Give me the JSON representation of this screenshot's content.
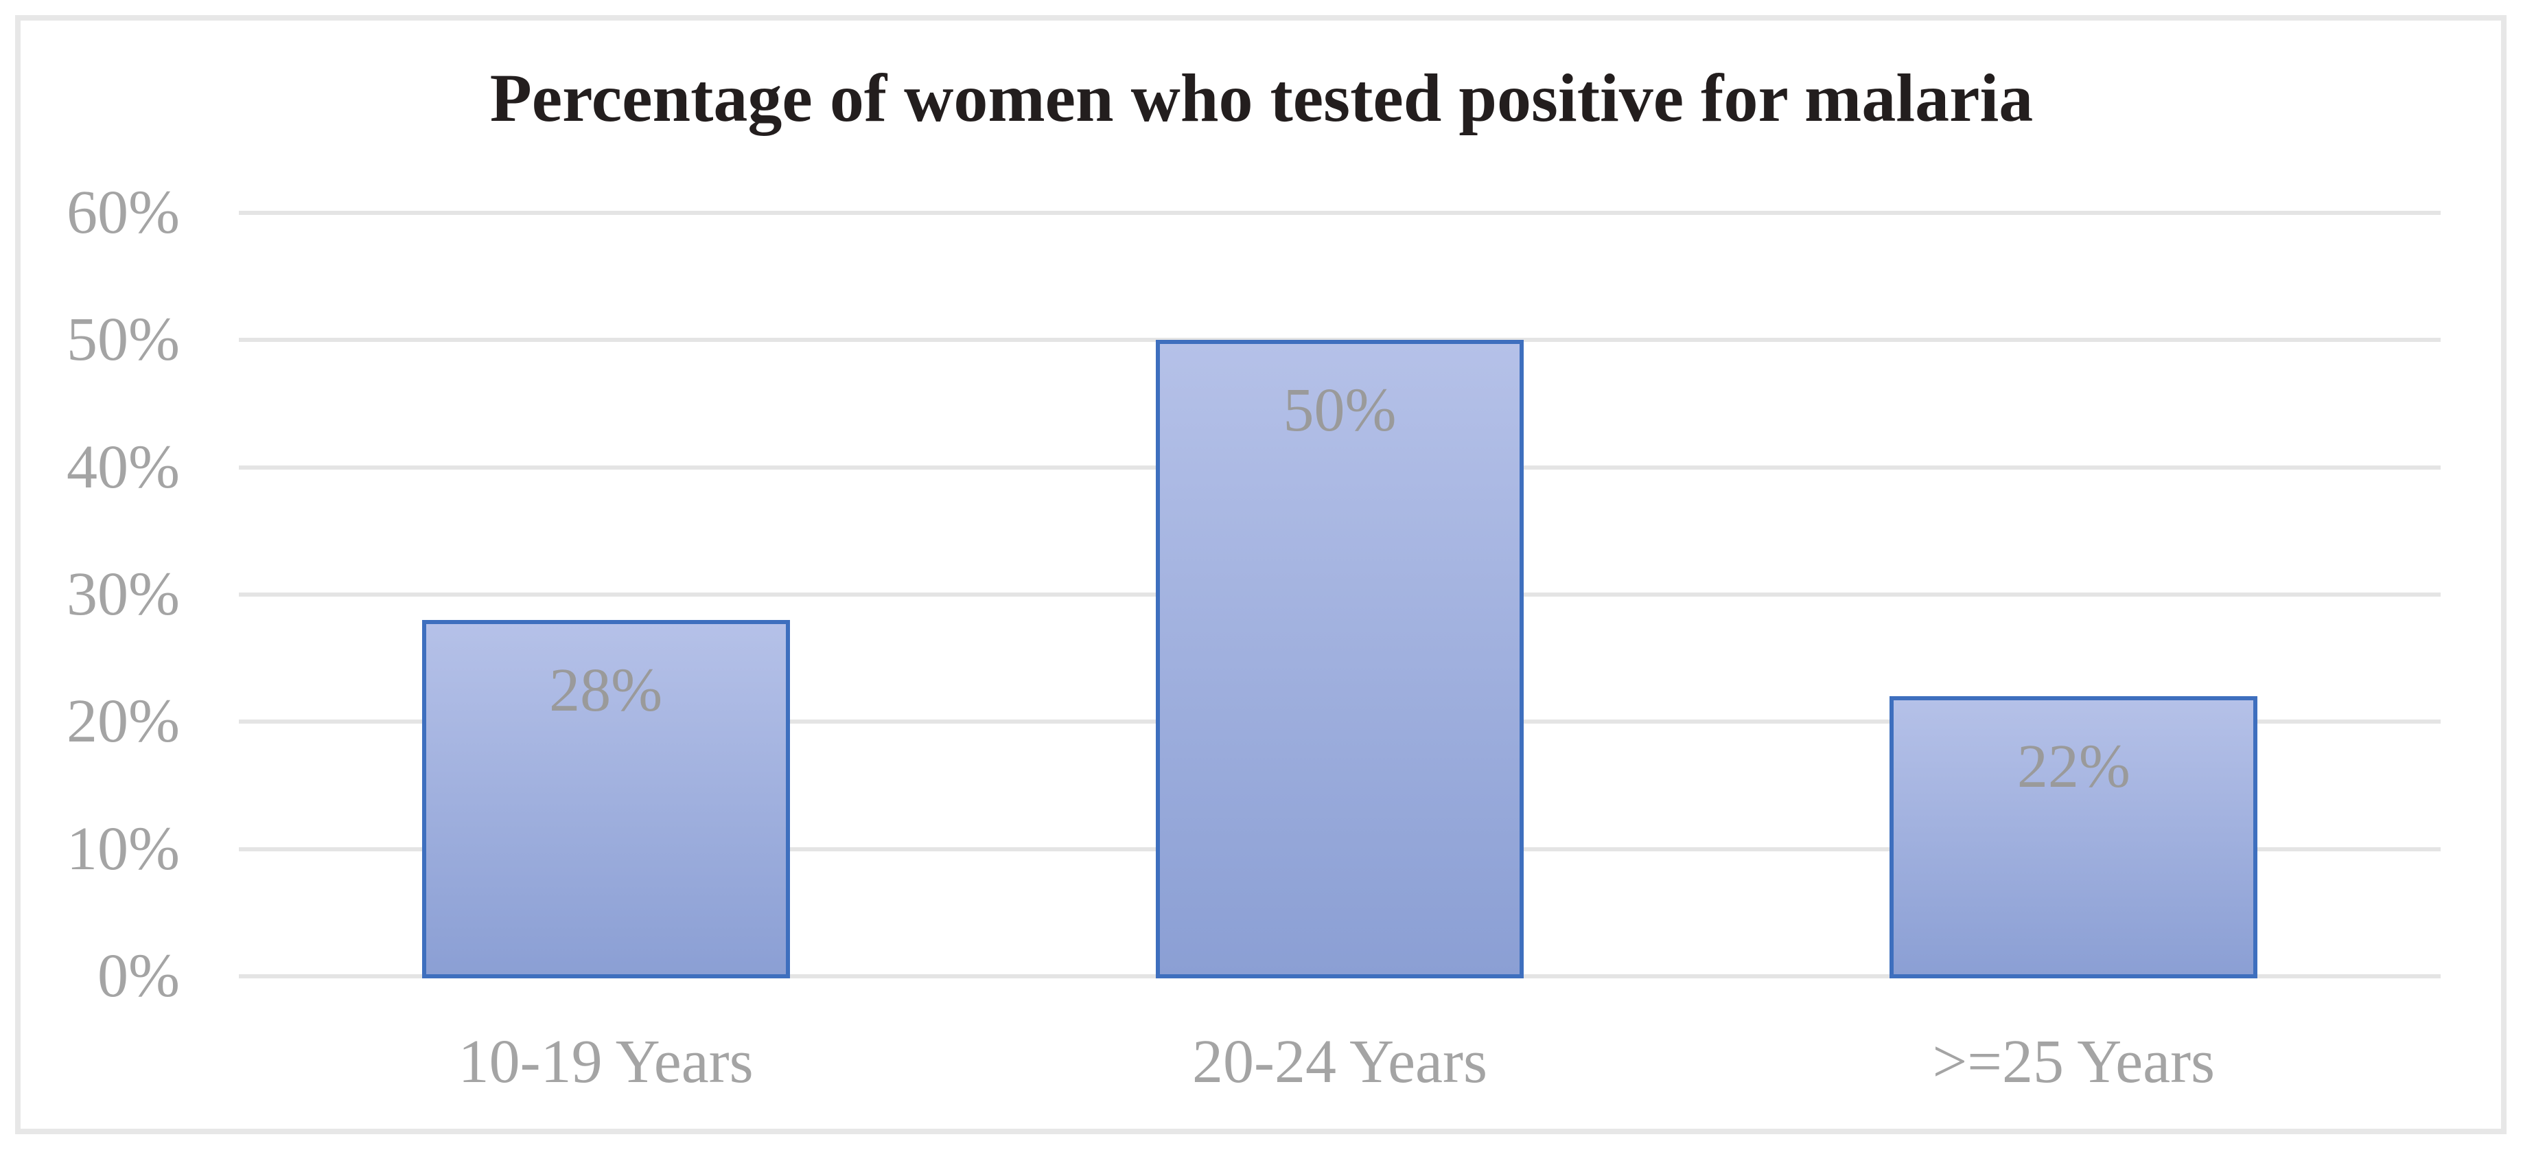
{
  "chart": {
    "title": "Percentage of women who tested positive for malaria"
  },
  "chart_data": {
    "type": "bar",
    "title": "Percentage of women who tested positive for malaria",
    "categories": [
      "10-19 Years",
      "20-24 Years",
      ">=25 Years"
    ],
    "values": [
      28,
      50,
      22
    ],
    "data_labels": [
      "28%",
      "50%",
      "22%"
    ],
    "data_label_position": "inside-end",
    "xlabel": "",
    "ylabel": "",
    "ylim": [
      0,
      60
    ],
    "yticks": [
      0,
      10,
      20,
      30,
      40,
      50,
      60
    ],
    "ytick_labels": [
      "0%",
      "10%",
      "20%",
      "30%",
      "40%",
      "50%",
      "60%"
    ],
    "grid": true,
    "legend": false,
    "colors": {
      "bar_fill_top": "#b5c1e8",
      "bar_fill_bottom": "#8b9fd4",
      "bar_border": "#3e6fbe",
      "gridline": "#e4e4e4",
      "axis_text": "#a4a4a4",
      "data_label_text": "#9a9a9a",
      "title_text": "#231e1e",
      "frame_border": "#e7e7e7",
      "background": "#ffffff"
    }
  }
}
